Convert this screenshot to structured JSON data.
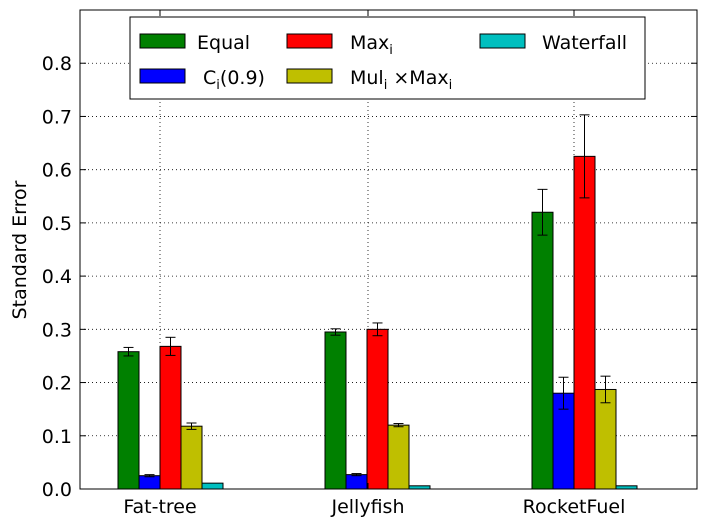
{
  "chart_data": {
    "type": "bar",
    "title": "",
    "xlabel": "",
    "ylabel": "Standard Error",
    "ylim": [
      0,
      0.9
    ],
    "yticks": [
      "0.0",
      "0.1",
      "0.2",
      "0.3",
      "0.4",
      "0.5",
      "0.6",
      "0.7",
      "0.8"
    ],
    "grid": true,
    "legend_position": "top",
    "categories": [
      "Fat-tree",
      "Jellyfish",
      "RocketFuel"
    ],
    "series": [
      {
        "name": "Equal",
        "legend": {
          "base": "Equal",
          "sub": "",
          "tail": ""
        },
        "color": "#008000",
        "values": [
          0.258,
          0.295,
          0.52
        ],
        "errors": [
          0.008,
          0.006,
          0.043
        ]
      },
      {
        "name": "Ci(0.9)",
        "legend": {
          "base": "C",
          "sub": "i",
          "tail": "(0.9)"
        },
        "color": "#0000ff",
        "values": [
          0.025,
          0.027,
          0.18
        ],
        "errors": [
          0.002,
          0.002,
          0.03
        ]
      },
      {
        "name": "Maxi",
        "legend": {
          "base": "Max",
          "sub": "i",
          "tail": ""
        },
        "color": "#ff0000",
        "values": [
          0.268,
          0.3,
          0.625
        ],
        "errors": [
          0.017,
          0.012,
          0.078
        ]
      },
      {
        "name": "Muli ×Maxi",
        "legend": {
          "base": "Mul",
          "sub": "i",
          "tail": " ×Max",
          "sub2": "i"
        },
        "color": "#bfbf00",
        "values": [
          0.118,
          0.12,
          0.187
        ],
        "errors": [
          0.006,
          0.003,
          0.025
        ]
      },
      {
        "name": "Waterfall",
        "legend": {
          "base": "Waterfall",
          "sub": "",
          "tail": ""
        },
        "color": "#00bfbf",
        "values": [
          0.011,
          0.006,
          0.006
        ],
        "errors": [
          0.0,
          0.0,
          0.0
        ]
      }
    ]
  }
}
